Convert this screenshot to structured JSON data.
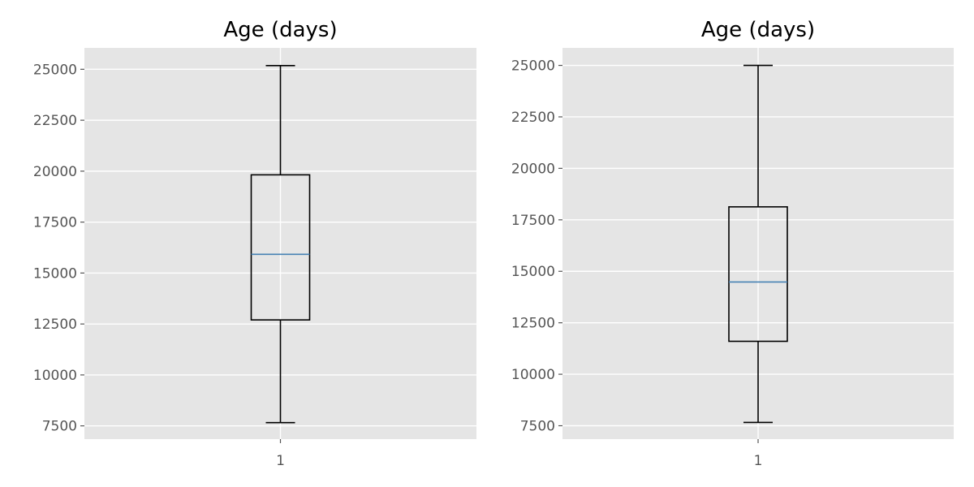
{
  "chart_data": [
    {
      "type": "box",
      "title": "Age (days)",
      "categories": [
        "1"
      ],
      "yticks": [
        7500,
        10000,
        12500,
        15000,
        17500,
        20000,
        22500,
        25000
      ],
      "ylim": [
        6850,
        26050
      ],
      "grid": true,
      "box": {
        "whisker_low": 7660,
        "q1": 12700,
        "median": 15920,
        "q3": 19820,
        "whisker_high": 25180
      },
      "colors": {
        "background": "#e5e5e5",
        "grid": "#ffffff",
        "box": "#000000",
        "median": "#4682b4"
      }
    },
    {
      "type": "box",
      "title": "Age (days)",
      "categories": [
        "1"
      ],
      "yticks": [
        7500,
        10000,
        12500,
        15000,
        17500,
        20000,
        22500,
        25000
      ],
      "ylim": [
        6850,
        25850
      ],
      "grid": true,
      "box": {
        "whisker_low": 7660,
        "q1": 11600,
        "median": 14480,
        "q3": 18130,
        "whisker_high": 25000
      },
      "colors": {
        "background": "#e5e5e5",
        "grid": "#ffffff",
        "box": "#000000",
        "median": "#4682b4"
      }
    }
  ]
}
